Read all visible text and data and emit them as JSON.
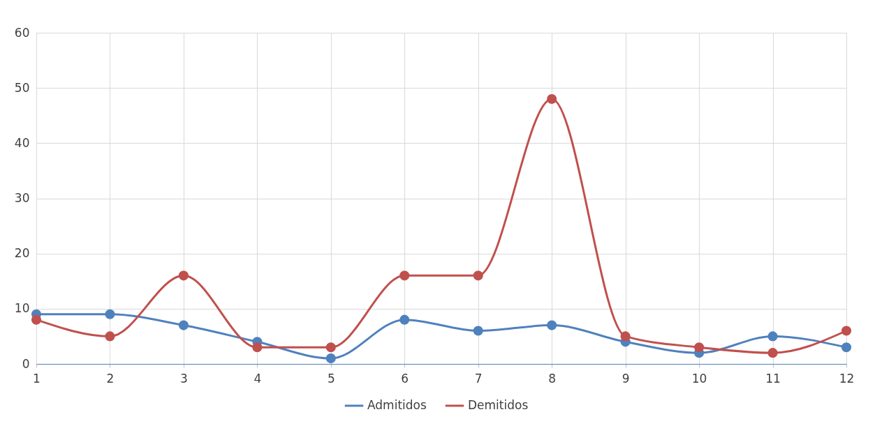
{
  "chart_data": {
    "type": "line",
    "x": [
      1,
      2,
      3,
      4,
      5,
      6,
      7,
      8,
      9,
      10,
      11,
      12
    ],
    "series": [
      {
        "name": "Admitidos",
        "color": "#4f81bd",
        "values": [
          9,
          9,
          7,
          4,
          1,
          8,
          6,
          7,
          4,
          2,
          5,
          3
        ]
      },
      {
        "name": "Demitidos",
        "color": "#c0504d",
        "values": [
          8,
          5,
          16,
          3,
          3,
          16,
          16,
          48,
          5,
          3,
          2,
          6
        ]
      }
    ],
    "xlim": [
      1,
      12
    ],
    "xticks": [
      1,
      2,
      3,
      4,
      5,
      6,
      7,
      8,
      9,
      10,
      11,
      12
    ],
    "ylim": [
      0,
      60
    ],
    "yticks": [
      0,
      10,
      20,
      30,
      40,
      50,
      60
    ],
    "grid": true,
    "legend": "bottom",
    "marker": "circle",
    "line_style": "solid"
  }
}
